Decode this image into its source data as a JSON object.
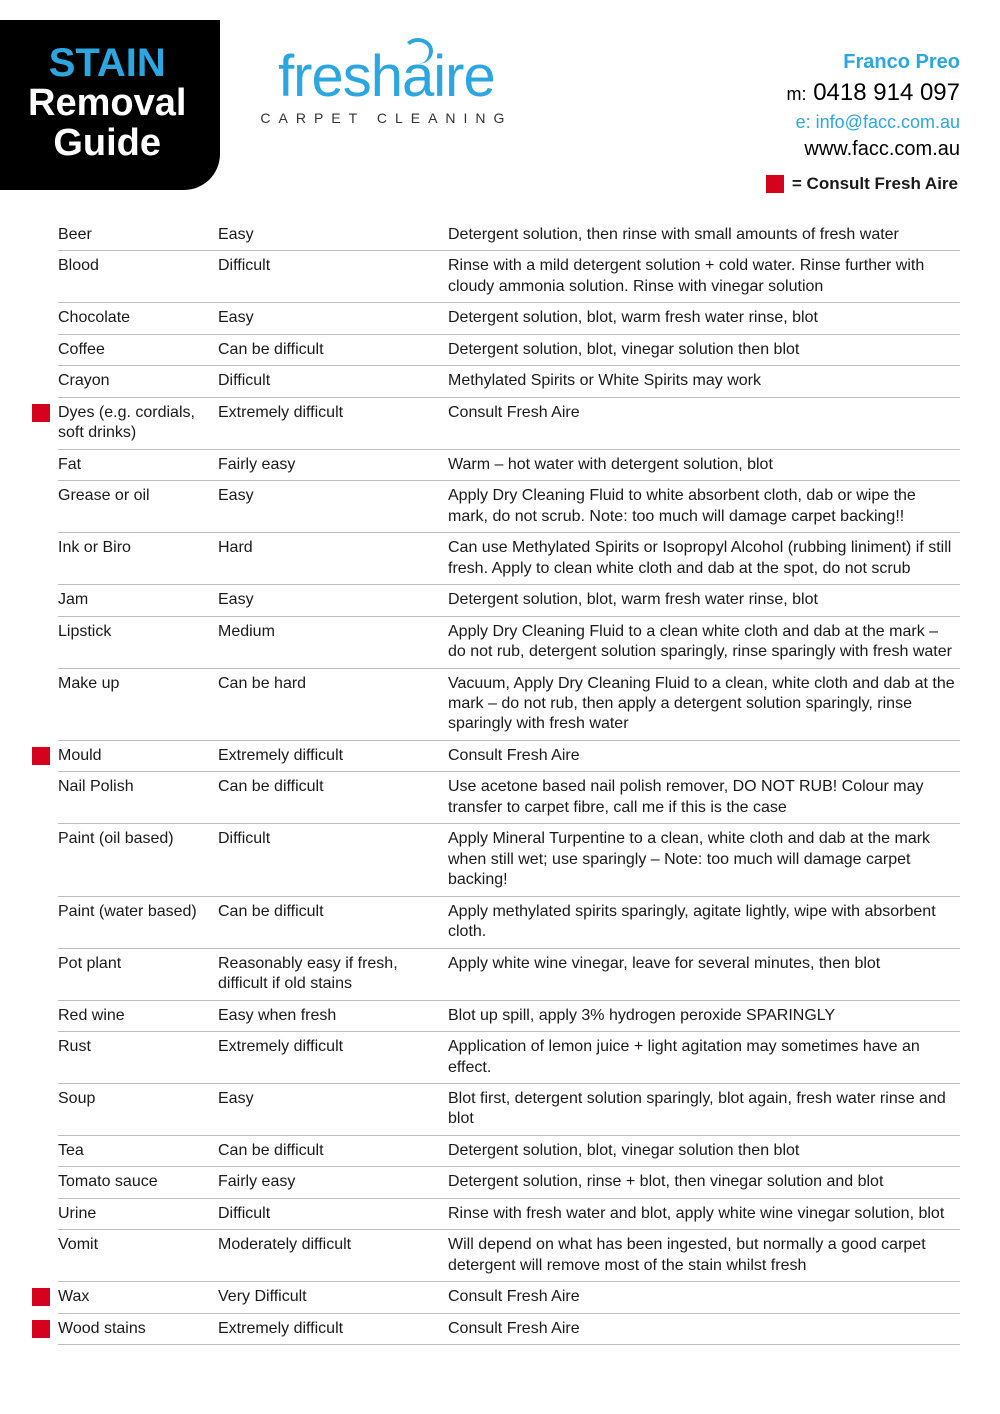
{
  "header": {
    "title_line1": "STAIN",
    "title_line2": "Removal",
    "title_line3": "Guide",
    "logo_main_pre": "fresh",
    "logo_main_a": "a",
    "logo_main_post": "ire",
    "logo_sub": "CARPET CLEANING",
    "contact": {
      "name": "Franco Preo",
      "mobile_prefix": "m:",
      "mobile": "0418 914 097",
      "email_prefix": "e:",
      "email": "info@facc.com.au",
      "web": "www.facc.com.au"
    },
    "legend_text": "= Consult Fresh Aire"
  },
  "colors": {
    "accent_blue": "#2ca6e0",
    "marker_red": "#d4021d",
    "border_gray": "#bfbfbf",
    "title_bg": "#000000"
  },
  "rows": [
    {
      "stain": "Beer",
      "difficulty": "Easy",
      "treatment": "Detergent solution, then rinse with small amounts of fresh water",
      "consult": false
    },
    {
      "stain": "Blood",
      "difficulty": "Difficult",
      "treatment": "Rinse with a mild detergent solution + cold water. Rinse further with cloudy ammonia solution. Rinse with vinegar solution",
      "consult": false
    },
    {
      "stain": "Chocolate",
      "difficulty": "Easy",
      "treatment": "Detergent solution, blot, warm fresh water rinse, blot",
      "consult": false
    },
    {
      "stain": "Coffee",
      "difficulty": "Can be difficult",
      "treatment": "Detergent solution, blot, vinegar solution then blot",
      "consult": false
    },
    {
      "stain": "Crayon",
      "difficulty": "Difficult",
      "treatment": "Methylated Spirits or White Spirits may work",
      "consult": false
    },
    {
      "stain": "Dyes (e.g. cordials, soft drinks)",
      "difficulty": "Extremely difficult",
      "treatment": "Consult Fresh Aire",
      "consult": true
    },
    {
      "stain": "Fat",
      "difficulty": "Fairly easy",
      "treatment": "Warm – hot water with detergent solution, blot",
      "consult": false
    },
    {
      "stain": "Grease or oil",
      "difficulty": "Easy",
      "treatment": "Apply Dry Cleaning Fluid to white absorbent cloth, dab or wipe the mark, do not scrub. Note: too much will damage carpet backing!!",
      "consult": false
    },
    {
      "stain": "Ink or Biro",
      "difficulty": "Hard",
      "treatment": "Can use Methylated Spirits or Isopropyl Alcohol (rubbing liniment) if still fresh. Apply to clean white cloth and dab at the spot, do not scrub",
      "consult": false
    },
    {
      "stain": "Jam",
      "difficulty": "Easy",
      "treatment": "Detergent solution, blot, warm fresh water rinse, blot",
      "consult": false
    },
    {
      "stain": "Lipstick",
      "difficulty": "Medium",
      "treatment": "Apply Dry Cleaning Fluid to a clean white cloth and dab at the mark – do not rub, detergent solution sparingly, rinse sparingly with fresh water",
      "consult": false
    },
    {
      "stain": "Make up",
      "difficulty": "Can be hard",
      "treatment": "Vacuum, Apply Dry Cleaning Fluid to a clean, white cloth and dab at the mark – do not rub, then apply a detergent solution sparingly, rinse sparingly with fresh water",
      "consult": false
    },
    {
      "stain": "Mould",
      "difficulty": "Extremely difficult",
      "treatment": "Consult Fresh Aire",
      "consult": true
    },
    {
      "stain": "Nail Polish",
      "difficulty": "Can be difficult",
      "treatment": "Use acetone based nail polish remover, DO NOT RUB! Colour may transfer to carpet fibre, call me if this is the case",
      "consult": false
    },
    {
      "stain": "Paint (oil based)",
      "difficulty": "Difficult",
      "treatment": "Apply Mineral Turpentine to a clean, white cloth and dab at the mark when still wet; use sparingly – Note: too much will damage carpet backing!",
      "consult": false
    },
    {
      "stain": "Paint (water based)",
      "difficulty": "Can be difficult",
      "treatment": "Apply methylated spirits sparingly, agitate lightly, wipe with absorbent cloth.",
      "consult": false
    },
    {
      "stain": "Pot plant",
      "difficulty": "Reasonably easy if fresh, difficult if old stains",
      "treatment": "Apply white wine vinegar, leave for several minutes, then blot",
      "consult": false
    },
    {
      "stain": "Red wine",
      "difficulty": "Easy when fresh",
      "treatment": "Blot up spill, apply 3% hydrogen peroxide SPARINGLY",
      "consult": false
    },
    {
      "stain": "Rust",
      "difficulty": "Extremely difficult",
      "treatment": "Application of lemon juice + light agitation may sometimes have an effect.",
      "consult": false
    },
    {
      "stain": "Soup",
      "difficulty": "Easy",
      "treatment": "Blot first, detergent solution sparingly, blot again, fresh water rinse and blot",
      "consult": false
    },
    {
      "stain": "Tea",
      "difficulty": "Can be difficult",
      "treatment": "Detergent solution, blot, vinegar solution then blot",
      "consult": false
    },
    {
      "stain": "Tomato sauce",
      "difficulty": "Fairly easy",
      "treatment": "Detergent solution, rinse + blot, then vinegar solution and blot",
      "consult": false
    },
    {
      "stain": "Urine",
      "difficulty": "Difficult",
      "treatment": "Rinse with fresh water and blot, apply white wine vinegar solution, blot",
      "consult": false
    },
    {
      "stain": "Vomit",
      "difficulty": "Moderately difficult",
      "treatment": "Will depend on what has been ingested, but normally a good carpet detergent will remove most of the stain whilst fresh",
      "consult": false
    },
    {
      "stain": "Wax",
      "difficulty": "Very Difficult",
      "treatment": "Consult Fresh Aire",
      "consult": true
    },
    {
      "stain": "Wood stains",
      "difficulty": "Extremely difficult",
      "treatment": "Consult Fresh Aire",
      "consult": true
    }
  ]
}
